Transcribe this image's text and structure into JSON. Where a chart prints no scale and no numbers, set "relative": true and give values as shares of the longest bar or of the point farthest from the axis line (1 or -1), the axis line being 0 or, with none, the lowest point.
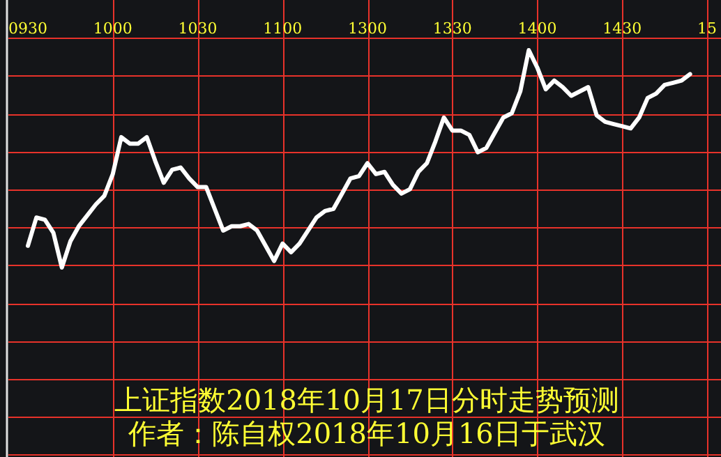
{
  "chart_data": {
    "type": "line",
    "relative": true,
    "grid": true,
    "marker": "none",
    "line_style": "solid",
    "categories": [
      "0930",
      null,
      null,
      null,
      null,
      null,
      null,
      null,
      null,
      null,
      "1000",
      null,
      null,
      null,
      null,
      null,
      null,
      null,
      null,
      null,
      "1030",
      null,
      null,
      null,
      null,
      null,
      null,
      null,
      null,
      null,
      "1100",
      null,
      null,
      null,
      null,
      null,
      null,
      null,
      null,
      null,
      "1300",
      null,
      null,
      null,
      null,
      null,
      null,
      null,
      null,
      null,
      "1330",
      null,
      null,
      null,
      null,
      null,
      null,
      null,
      null,
      null,
      "1400",
      null,
      null,
      null,
      null,
      null,
      null,
      null,
      null,
      null,
      "1430",
      null,
      null,
      null,
      null,
      null,
      null,
      null,
      null,
      null,
      "15"
    ],
    "series": [
      {
        "color": "#ffffff",
        "values": [
          0.1,
          0.23,
          0.22,
          0.16,
          0.0,
          0.12,
          0.19,
          0.24,
          0.29,
          0.33,
          0.43,
          0.6,
          0.57,
          0.57,
          0.6,
          0.49,
          0.39,
          0.45,
          0.46,
          0.41,
          0.37,
          0.37,
          0.27,
          0.17,
          0.19,
          0.19,
          0.2,
          0.17,
          0.1,
          0.03,
          0.11,
          0.07,
          0.11,
          0.17,
          0.23,
          0.26,
          0.27,
          0.34,
          0.41,
          0.42,
          0.48,
          0.43,
          0.44,
          0.38,
          0.34,
          0.36,
          0.44,
          0.48,
          0.58,
          0.69,
          0.63,
          0.63,
          0.61,
          0.53,
          0.55,
          0.62,
          0.69,
          0.71,
          0.81,
          1.0,
          0.92,
          0.82,
          0.86,
          0.83,
          0.79,
          0.81,
          0.83,
          0.7,
          0.67,
          0.66,
          0.65,
          0.64,
          0.69,
          0.78,
          0.8,
          0.84,
          0.85,
          0.86,
          0.89,
          null,
          null
        ]
      }
    ],
    "annotations": [
      "上证指数2018年10月17日分时走势预测",
      "作者：陈自权2018年10月16日于武汉"
    ]
  }
}
